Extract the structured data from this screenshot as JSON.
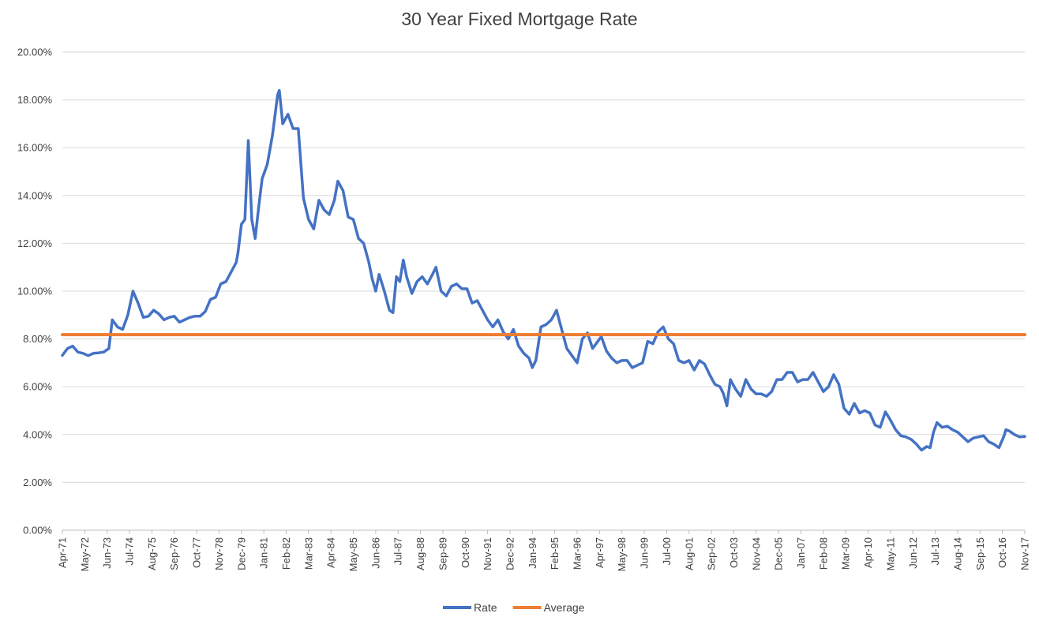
{
  "chart_data": {
    "type": "line",
    "title": "30 Year Fixed Mortgage Rate",
    "xlabel": "",
    "ylabel": "",
    "ylim": [
      0,
      20
    ],
    "x_start": "1971-04",
    "x_end": "2017-11",
    "x_tick_labels": [
      "Apr-71",
      "May-72",
      "Jun-73",
      "Jul-74",
      "Aug-75",
      "Sep-76",
      "Oct-77",
      "Nov-78",
      "Dec-79",
      "Jan-81",
      "Feb-82",
      "Mar-83",
      "Apr-84",
      "May-85",
      "Jun-86",
      "Jul-87",
      "Aug-88",
      "Sep-89",
      "Oct-90",
      "Nov-91",
      "Dec-92",
      "Jan-94",
      "Feb-95",
      "Mar-96",
      "Apr-97",
      "May-98",
      "Jun-99",
      "Jul-00",
      "Aug-01",
      "Sep-02",
      "Oct-03",
      "Nov-04",
      "Dec-05",
      "Jan-07",
      "Feb-08",
      "Mar-09",
      "Apr-10",
      "May-11",
      "Jun-12",
      "Jul-13",
      "Aug-14",
      "Sep-15",
      "Oct-16",
      "Nov-17"
    ],
    "y_tick_labels": [
      "0.00%",
      "2.00%",
      "4.00%",
      "6.00%",
      "8.00%",
      "10.00%",
      "12.00%",
      "14.00%",
      "16.00%",
      "18.00%",
      "20.00%"
    ],
    "grid": true,
    "legend_position": "bottom",
    "series": [
      {
        "name": "Rate",
        "color": "#4472c4",
        "points": [
          [
            "1971-04",
            7.31
          ],
          [
            "1971-07",
            7.6
          ],
          [
            "1971-10",
            7.7
          ],
          [
            "1972-01",
            7.45
          ],
          [
            "1972-04",
            7.4
          ],
          [
            "1972-07",
            7.3
          ],
          [
            "1972-10",
            7.4
          ],
          [
            "1973-01",
            7.42
          ],
          [
            "1973-04",
            7.45
          ],
          [
            "1973-07",
            7.6
          ],
          [
            "1973-09",
            8.8
          ],
          [
            "1973-12",
            8.5
          ],
          [
            "1974-03",
            8.4
          ],
          [
            "1974-06",
            9.0
          ],
          [
            "1974-09",
            10.0
          ],
          [
            "1974-12",
            9.5
          ],
          [
            "1975-03",
            8.9
          ],
          [
            "1975-06",
            8.95
          ],
          [
            "1975-09",
            9.2
          ],
          [
            "1975-12",
            9.05
          ],
          [
            "1976-03",
            8.8
          ],
          [
            "1976-06",
            8.9
          ],
          [
            "1976-09",
            8.95
          ],
          [
            "1976-12",
            8.7
          ],
          [
            "1977-03",
            8.8
          ],
          [
            "1977-06",
            8.9
          ],
          [
            "1977-09",
            8.95
          ],
          [
            "1977-12",
            8.95
          ],
          [
            "1978-03",
            9.15
          ],
          [
            "1978-06",
            9.65
          ],
          [
            "1978-09",
            9.75
          ],
          [
            "1978-12",
            10.3
          ],
          [
            "1979-03",
            10.4
          ],
          [
            "1979-06",
            10.8
          ],
          [
            "1979-09",
            11.2
          ],
          [
            "1979-10",
            11.6
          ],
          [
            "1979-12",
            12.8
          ],
          [
            "1980-02",
            13.0
          ],
          [
            "1980-04",
            16.3
          ],
          [
            "1980-06",
            13.0
          ],
          [
            "1980-08",
            12.2
          ],
          [
            "1980-10",
            13.5
          ],
          [
            "1980-12",
            14.7
          ],
          [
            "1981-03",
            15.3
          ],
          [
            "1981-06",
            16.5
          ],
          [
            "1981-09",
            18.2
          ],
          [
            "1981-10",
            18.4
          ],
          [
            "1981-12",
            17.0
          ],
          [
            "1982-03",
            17.4
          ],
          [
            "1982-06",
            16.8
          ],
          [
            "1982-09",
            16.8
          ],
          [
            "1982-12",
            13.9
          ],
          [
            "1983-03",
            13.0
          ],
          [
            "1983-06",
            12.6
          ],
          [
            "1983-09",
            13.8
          ],
          [
            "1983-12",
            13.4
          ],
          [
            "1984-03",
            13.2
          ],
          [
            "1984-06",
            13.8
          ],
          [
            "1984-08",
            14.6
          ],
          [
            "1984-11",
            14.2
          ],
          [
            "1985-02",
            13.1
          ],
          [
            "1985-05",
            13.0
          ],
          [
            "1985-08",
            12.2
          ],
          [
            "1985-11",
            12.0
          ],
          [
            "1986-02",
            11.2
          ],
          [
            "1986-04",
            10.5
          ],
          [
            "1986-06",
            10.0
          ],
          [
            "1986-08",
            10.7
          ],
          [
            "1986-11",
            10.0
          ],
          [
            "1987-02",
            9.2
          ],
          [
            "1987-04",
            9.1
          ],
          [
            "1987-06",
            10.6
          ],
          [
            "1987-08",
            10.4
          ],
          [
            "1987-10",
            11.3
          ],
          [
            "1987-12",
            10.6
          ],
          [
            "1988-03",
            9.9
          ],
          [
            "1988-06",
            10.4
          ],
          [
            "1988-09",
            10.6
          ],
          [
            "1988-12",
            10.3
          ],
          [
            "1989-03",
            10.7
          ],
          [
            "1989-05",
            11.0
          ],
          [
            "1989-08",
            10.0
          ],
          [
            "1989-11",
            9.8
          ],
          [
            "1990-02",
            10.2
          ],
          [
            "1990-05",
            10.3
          ],
          [
            "1990-08",
            10.1
          ],
          [
            "1990-11",
            10.1
          ],
          [
            "1991-02",
            9.5
          ],
          [
            "1991-05",
            9.6
          ],
          [
            "1991-08",
            9.2
          ],
          [
            "1991-11",
            8.8
          ],
          [
            "1992-02",
            8.5
          ],
          [
            "1992-05",
            8.8
          ],
          [
            "1992-08",
            8.3
          ],
          [
            "1992-11",
            8.0
          ],
          [
            "1993-02",
            8.4
          ],
          [
            "1993-05",
            7.7
          ],
          [
            "1993-08",
            7.4
          ],
          [
            "1993-11",
            7.2
          ],
          [
            "1994-01",
            6.8
          ],
          [
            "1994-03",
            7.1
          ],
          [
            "1994-06",
            8.5
          ],
          [
            "1994-09",
            8.6
          ],
          [
            "1994-12",
            8.8
          ],
          [
            "1995-03",
            9.2
          ],
          [
            "1995-06",
            8.4
          ],
          [
            "1995-09",
            7.6
          ],
          [
            "1995-12",
            7.3
          ],
          [
            "1996-03",
            7.0
          ],
          [
            "1996-06",
            8.0
          ],
          [
            "1996-09",
            8.25
          ],
          [
            "1996-12",
            7.6
          ],
          [
            "1997-03",
            7.9
          ],
          [
            "1997-05",
            8.1
          ],
          [
            "1997-08",
            7.5
          ],
          [
            "1997-11",
            7.2
          ],
          [
            "1998-02",
            7.0
          ],
          [
            "1998-05",
            7.1
          ],
          [
            "1998-08",
            7.1
          ],
          [
            "1998-11",
            6.8
          ],
          [
            "1999-02",
            6.9
          ],
          [
            "1999-05",
            7.0
          ],
          [
            "1999-08",
            7.9
          ],
          [
            "1999-11",
            7.8
          ],
          [
            "2000-02",
            8.3
          ],
          [
            "2000-05",
            8.5
          ],
          [
            "2000-08",
            8.0
          ],
          [
            "2000-11",
            7.8
          ],
          [
            "2001-02",
            7.1
          ],
          [
            "2001-05",
            7.0
          ],
          [
            "2001-08",
            7.1
          ],
          [
            "2001-11",
            6.7
          ],
          [
            "2002-02",
            7.1
          ],
          [
            "2002-05",
            6.95
          ],
          [
            "2002-08",
            6.5
          ],
          [
            "2002-11",
            6.1
          ],
          [
            "2003-02",
            6.0
          ],
          [
            "2003-04",
            5.7
          ],
          [
            "2003-06",
            5.2
          ],
          [
            "2003-08",
            6.3
          ],
          [
            "2003-11",
            5.9
          ],
          [
            "2004-02",
            5.6
          ],
          [
            "2004-05",
            6.3
          ],
          [
            "2004-08",
            5.9
          ],
          [
            "2004-11",
            5.7
          ],
          [
            "2005-02",
            5.7
          ],
          [
            "2005-05",
            5.6
          ],
          [
            "2005-08",
            5.8
          ],
          [
            "2005-11",
            6.3
          ],
          [
            "2006-02",
            6.3
          ],
          [
            "2006-05",
            6.6
          ],
          [
            "2006-08",
            6.6
          ],
          [
            "2006-11",
            6.2
          ],
          [
            "2007-02",
            6.3
          ],
          [
            "2007-05",
            6.3
          ],
          [
            "2007-08",
            6.6
          ],
          [
            "2007-11",
            6.2
          ],
          [
            "2008-02",
            5.8
          ],
          [
            "2008-05",
            6.0
          ],
          [
            "2008-08",
            6.5
          ],
          [
            "2008-11",
            6.1
          ],
          [
            "2009-02",
            5.1
          ],
          [
            "2009-05",
            4.85
          ],
          [
            "2009-08",
            5.3
          ],
          [
            "2009-11",
            4.9
          ],
          [
            "2010-02",
            5.0
          ],
          [
            "2010-05",
            4.9
          ],
          [
            "2010-08",
            4.4
          ],
          [
            "2010-11",
            4.3
          ],
          [
            "2011-02",
            4.95
          ],
          [
            "2011-05",
            4.6
          ],
          [
            "2011-08",
            4.2
          ],
          [
            "2011-11",
            3.95
          ],
          [
            "2012-02",
            3.9
          ],
          [
            "2012-05",
            3.8
          ],
          [
            "2012-08",
            3.6
          ],
          [
            "2012-11",
            3.35
          ],
          [
            "2013-02",
            3.5
          ],
          [
            "2013-04",
            3.45
          ],
          [
            "2013-06",
            4.1
          ],
          [
            "2013-08",
            4.5
          ],
          [
            "2013-11",
            4.3
          ],
          [
            "2014-02",
            4.35
          ],
          [
            "2014-05",
            4.2
          ],
          [
            "2014-08",
            4.1
          ],
          [
            "2014-11",
            3.9
          ],
          [
            "2015-02",
            3.7
          ],
          [
            "2015-05",
            3.85
          ],
          [
            "2015-08",
            3.9
          ],
          [
            "2015-11",
            3.95
          ],
          [
            "2016-02",
            3.7
          ],
          [
            "2016-05",
            3.6
          ],
          [
            "2016-08",
            3.45
          ],
          [
            "2016-11",
            3.95
          ],
          [
            "2016-12",
            4.2
          ],
          [
            "2017-02",
            4.15
          ],
          [
            "2017-05",
            4.0
          ],
          [
            "2017-08",
            3.9
          ],
          [
            "2017-11",
            3.92
          ]
        ]
      },
      {
        "name": "Average",
        "color": "#ed7d31",
        "points": [
          [
            "1971-04",
            8.18
          ],
          [
            "2017-11",
            8.18
          ]
        ]
      }
    ]
  }
}
